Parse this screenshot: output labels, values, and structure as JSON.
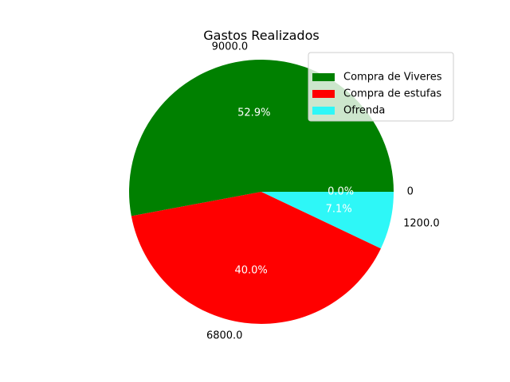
{
  "chart_data": {
    "type": "pie",
    "title": "Gastos Realizados",
    "start_angle_deg": 0,
    "direction": "counterclockwise",
    "slices": [
      {
        "name": "Compra de Viveres",
        "value": 9000.0,
        "value_label": "9000.0",
        "percent_label": "52.9%",
        "color": "#008000"
      },
      {
        "name": "Compra de estufas",
        "value": 6800.0,
        "value_label": "6800.0",
        "percent_label": "40.0%",
        "color": "#ff0000"
      },
      {
        "name": "Ofrenda",
        "value": 1200.0,
        "value_label": "1200.0",
        "percent_label": "7.1%",
        "color": "#2ef7f7"
      },
      {
        "name": "",
        "value": 0,
        "value_label": "0",
        "percent_label": "0.0%",
        "color": "#ffffff"
      }
    ],
    "legend": {
      "placement": "top-right",
      "entries": [
        "Compra de Viveres",
        "Compra de estufas",
        "Ofrenda"
      ]
    }
  }
}
